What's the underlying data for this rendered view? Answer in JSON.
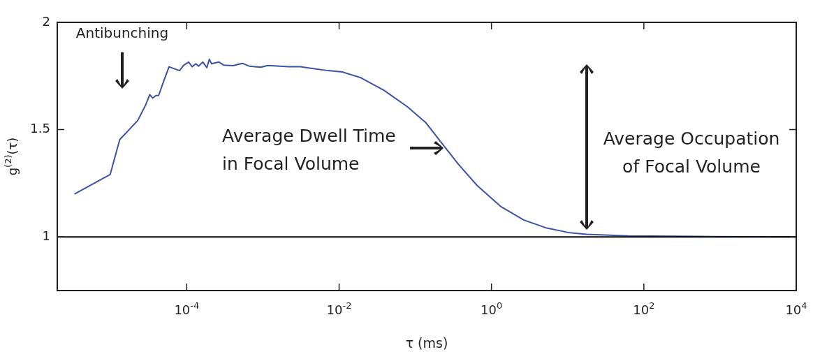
{
  "chart_data": {
    "type": "line",
    "xlabel": "τ (ms)",
    "ylabel": "g$^{(2)}$(τ)",
    "log": "x",
    "xlim": [
      2e-06,
      10000
    ],
    "xticks": [
      {
        "value": 0.0001,
        "label": "10$^{-4}$"
      },
      {
        "value": 0.01,
        "label": "10$^{-2}$"
      },
      {
        "value": 1,
        "label": "10$^{0}$"
      },
      {
        "value": 100,
        "label": "10$^{2}$"
      },
      {
        "value": 10000,
        "label": "10$^{4}$"
      }
    ],
    "ylim": [
      0.75,
      2
    ],
    "yticks": [
      1,
      1.5,
      2
    ],
    "grid": false,
    "legend": false,
    "marker": "none",
    "line_style": "solid",
    "x": [
      3.36e-06,
      9.9e-06,
      1.32e-05,
      2.28e-05,
      2.9e-05,
      3.27e-05,
      3.58e-05,
      3.94e-05,
      4.28e-05,
      4.99e-05,
      5.86e-05,
      8.05e-05,
      9.14e-05,
      0.000106,
      0.000118,
      0.000132,
      0.000143,
      0.000163,
      0.000184,
      0.000198,
      0.000212,
      0.000265,
      0.000305,
      0.000405,
      0.000537,
      0.000662,
      0.00094,
      0.00116,
      0.00218,
      0.0031,
      0.00442,
      0.0072,
      0.011,
      0.0193,
      0.0389,
      0.0785,
      0.138,
      0.225,
      0.369,
      0.647,
      1.31,
      2.64,
      5.32,
      10.8,
      17.6,
      62.2,
      513,
      10000
    ],
    "series": [
      {
        "color": "#3a53a4",
        "values": [
          1.2,
          1.291,
          1.453,
          1.543,
          1.616,
          1.663,
          1.647,
          1.659,
          1.659,
          1.726,
          1.793,
          1.775,
          1.8,
          1.815,
          1.793,
          1.807,
          1.796,
          1.815,
          1.789,
          1.828,
          1.807,
          1.815,
          1.801,
          1.798,
          1.809,
          1.796,
          1.791,
          1.799,
          1.793,
          1.793,
          1.785,
          1.775,
          1.769,
          1.742,
          1.683,
          1.607,
          1.532,
          1.435,
          1.338,
          1.24,
          1.143,
          1.079,
          1.041,
          1.019,
          1.012,
          1.005,
          1.002,
          1.0
        ]
      }
    ],
    "ref_lines": [
      {
        "axis": "y",
        "value": 1,
        "color": "#000000",
        "line_style": "solid"
      }
    ],
    "annotations": [
      "Antibunching",
      "Average Dwell Time\nin Focal Volume",
      "Average Occupation\nof Focal Volume"
    ]
  }
}
